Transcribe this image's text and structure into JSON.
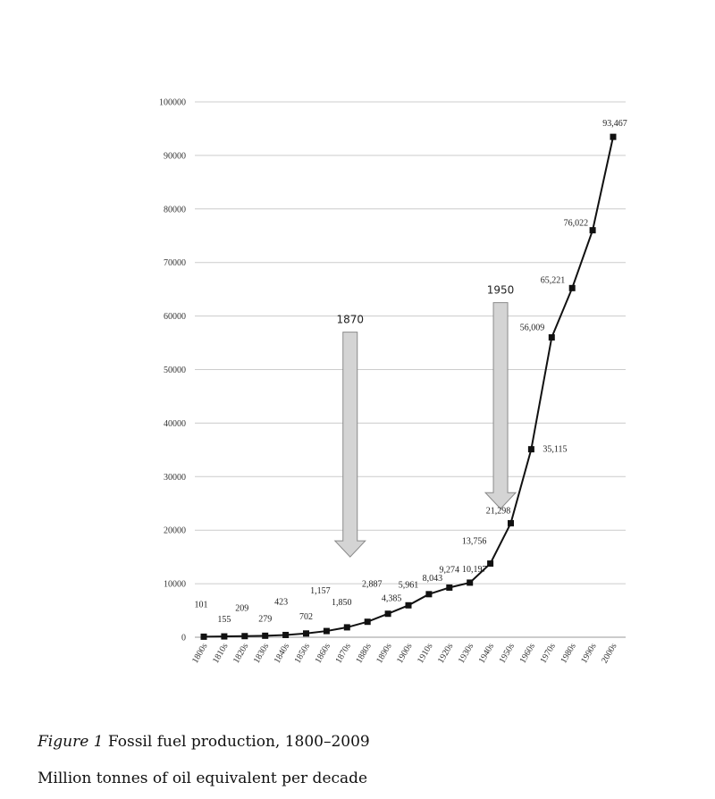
{
  "chart_data": {
    "type": "line",
    "categories": [
      "1800s",
      "1810s",
      "1820s",
      "1830s",
      "1840s",
      "1850s",
      "1860s",
      "1870s",
      "1880s",
      "1890s",
      "1900s",
      "1910s",
      "1920s",
      "1930s",
      "1940s",
      "1950s",
      "1960s",
      "1970s",
      "1980s",
      "1990s",
      "2000s"
    ],
    "values": [
      101,
      155,
      209,
      279,
      423,
      702,
      1157,
      1850,
      2887,
      4385,
      5961,
      8043,
      9274,
      10197,
      13756,
      21298,
      35115,
      56009,
      65221,
      76022,
      93467
    ],
    "data_labels": [
      "101",
      "155",
      "209",
      "279",
      "423",
      "702",
      "1,157",
      "1,850",
      "2,887",
      "4,385",
      "5,961",
      "8,043",
      "9,274",
      "10,197",
      "13,756",
      "21,298",
      "35,115",
      "56,009",
      "65,221",
      "76,022",
      "93,467"
    ],
    "y_ticks": [
      "0",
      "10000",
      "20000",
      "30000",
      "40000",
      "50000",
      "60000",
      "70000",
      "80000",
      "90000",
      "100000"
    ],
    "ylim": [
      0,
      100000
    ],
    "grid": true,
    "legend": "none",
    "annotations": [
      {
        "label": "1870",
        "from_value": 57000,
        "to_value": 15000,
        "category": "1870s"
      },
      {
        "label": "1950",
        "from_value": 62500,
        "to_value": 24000,
        "category": "1940s"
      }
    ],
    "colors": {
      "line": "#111111",
      "grid": "#cccccc",
      "arrow_fill": "#d4d4d4",
      "arrow_stroke": "#8a8a8a"
    }
  },
  "caption": {
    "figure_label": "Figure 1",
    "title": " Fossil fuel production, 1800–2009",
    "subtitle": "Million tonnes of oil equivalent per decade"
  }
}
